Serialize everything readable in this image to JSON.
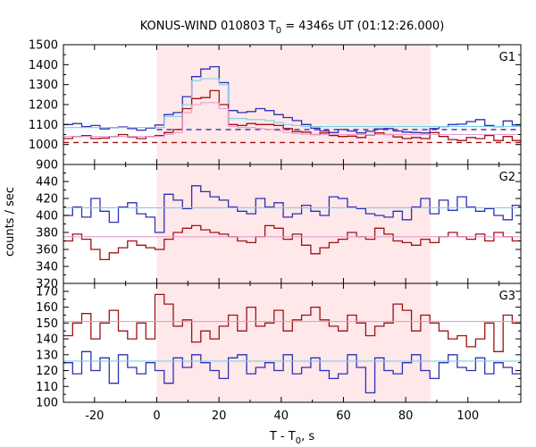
{
  "chart_data": {
    "type": "line",
    "title": "KONUS-WIND 010803 T",
    "title_subscript": "0",
    "title_suffix": " = 4346s UT (01:12:26.000)",
    "xlabel": "T - T",
    "xlabel_subscript": "0",
    "xlabel_suffix": ", s",
    "ylabel": "counts / sec",
    "xlim": [
      -30,
      117
    ],
    "xticks": [
      -20,
      0,
      20,
      40,
      60,
      80,
      100
    ],
    "shaded_interval": [
      0,
      88
    ],
    "colors": {
      "shade": "#ffe8ea",
      "blue": "#2f2fb4",
      "red": "#a01010",
      "light_blue": "#7ecde8",
      "light_pink": "#e89ad0",
      "frame": "#000000"
    },
    "panels": [
      {
        "label": "G1",
        "ylim": [
          900,
          1500
        ],
        "yticks": [
          900,
          1000,
          1100,
          1200,
          1300,
          1400,
          1500
        ],
        "series": [
          {
            "color": "blue",
            "step": 2.944,
            "values": [
              1100,
              1105,
              1090,
              1095,
              1078,
              1085,
              1088,
              1080,
              1072,
              1082,
              1098,
              1150,
              1160,
              1240,
              1340,
              1378,
              1390,
              1310,
              1170,
              1160,
              1165,
              1180,
              1170,
              1150,
              1135,
              1120,
              1100,
              1082,
              1068,
              1060,
              1075,
              1068,
              1058,
              1066,
              1078,
              1080,
              1068,
              1062,
              1060,
              1058,
              1080,
              1090,
              1100,
              1102,
              1115,
              1125,
              1095,
              1090,
              1118,
              1098
            ]
          },
          {
            "color": "light_blue",
            "step": 2.944,
            "values": [
              1085,
              1085,
              1085,
              1085,
              1085,
              1085,
              1085,
              1085,
              1085,
              1085,
              1085,
              1140,
              1140,
              1200,
              1320,
              1330,
              1330,
              1300,
              1130,
              1130,
              1125,
              1125,
              1120,
              1110,
              1100,
              1095,
              1090,
              1090,
              1090,
              1090,
              1090,
              1090,
              1090,
              1090,
              1090,
              1090,
              1090,
              1090,
              1090,
              1090,
              1090,
              1090,
              1090,
              1090,
              1090,
              1090,
              1090,
              1090,
              1090,
              1090
            ]
          },
          {
            "color": "red",
            "step": 2.944,
            "values": [
              1030,
              1040,
              1045,
              1030,
              1032,
              1040,
              1050,
              1038,
              1030,
              1040,
              1045,
              1060,
              1075,
              1180,
              1230,
              1235,
              1270,
              1200,
              1100,
              1095,
              1105,
              1100,
              1100,
              1095,
              1080,
              1065,
              1062,
              1050,
              1058,
              1045,
              1040,
              1042,
              1035,
              1048,
              1058,
              1050,
              1038,
              1030,
              1035,
              1030,
              1060,
              1040,
              1025,
              1020,
              1035,
              1030,
              1045,
              1020,
              1040,
              1020
            ]
          },
          {
            "color": "light_pink",
            "step": 2.944,
            "values": [
              1040,
              1040,
              1040,
              1040,
              1040,
              1040,
              1040,
              1040,
              1040,
              1040,
              1040,
              1050,
              1060,
              1160,
              1200,
              1210,
              1210,
              1180,
              1090,
              1085,
              1085,
              1080,
              1075,
              1070,
              1060,
              1055,
              1052,
              1050,
              1050,
              1050,
              1050,
              1050,
              1050,
              1050,
              1050,
              1050,
              1050,
              1050,
              1050,
              1050,
              1050,
              1050,
              1050,
              1050,
              1050,
              1050,
              1050,
              1050,
              1050,
              1050
            ]
          }
        ],
        "dashed_levels": [
          {
            "color": "blue",
            "value": 1075,
            "from": 0,
            "to": 117
          },
          {
            "color": "red",
            "value": 1010,
            "from": -30,
            "to": 117
          }
        ]
      },
      {
        "label": "G2",
        "ylim": [
          320,
          460
        ],
        "yticks": [
          320,
          340,
          360,
          380,
          400,
          420,
          440
        ],
        "series": [
          {
            "color": "blue",
            "step": 2.944,
            "values": [
              400,
              410,
              398,
              420,
              405,
              392,
              410,
              415,
              402,
              398,
              380,
              425,
              418,
              408,
              435,
              428,
              422,
              418,
              410,
              405,
              402,
              420,
              410,
              415,
              398,
              402,
              412,
              405,
              400,
              422,
              420,
              410,
              408,
              402,
              400,
              398,
              405,
              395,
              410,
              420,
              402,
              418,
              406,
              422,
              410,
              405,
              408,
              400,
              395,
              412
            ]
          },
          {
            "color": "light_blue",
            "step": 2.944,
            "values": [
              409,
              409,
              409,
              409,
              409,
              409,
              409,
              409,
              409,
              409,
              409,
              409,
              409,
              409,
              409,
              409,
              409,
              409,
              409,
              409,
              409,
              409,
              409,
              409,
              409,
              409,
              409,
              409,
              409,
              409,
              409,
              409,
              409,
              409,
              409,
              409,
              409,
              409,
              409,
              409,
              409,
              409,
              409,
              409,
              409,
              409,
              409,
              409,
              409,
              409
            ]
          },
          {
            "color": "red",
            "step": 2.944,
            "values": [
              370,
              378,
              372,
              360,
              348,
              356,
              362,
              370,
              365,
              362,
              360,
              372,
              380,
              385,
              388,
              383,
              380,
              378,
              375,
              370,
              368,
              375,
              388,
              385,
              372,
              378,
              365,
              355,
              362,
              368,
              372,
              380,
              375,
              372,
              385,
              378,
              370,
              368,
              365,
              372,
              368,
              375,
              380,
              375,
              372,
              378,
              370,
              380,
              375,
              370
            ]
          },
          {
            "color": "light_pink",
            "step": 2.944,
            "values": [
              375,
              375,
              375,
              375,
              375,
              375,
              375,
              375,
              375,
              375,
              375,
              375,
              375,
              375,
              375,
              375,
              375,
              375,
              375,
              375,
              375,
              375,
              375,
              375,
              375,
              375,
              375,
              375,
              375,
              375,
              375,
              375,
              375,
              375,
              375,
              375,
              375,
              375,
              375,
              375,
              375,
              375,
              375,
              375,
              375,
              375,
              375,
              375,
              375,
              375
            ]
          }
        ],
        "dashed_levels": []
      },
      {
        "label": "G3",
        "ylim": [
          100,
          175
        ],
        "yticks": [
          100,
          110,
          120,
          130,
          140,
          150,
          160,
          170
        ],
        "series": [
          {
            "color": "blue",
            "step": 2.944,
            "values": [
              125,
              118,
              132,
              120,
              128,
              112,
              130,
              122,
              118,
              125,
              120,
              112,
              128,
              122,
              130,
              125,
              120,
              115,
              128,
              130,
              118,
              122,
              125,
              120,
              130,
              118,
              122,
              128,
              120,
              115,
              118,
              130,
              122,
              106,
              128,
              120,
              118,
              125,
              130,
              120,
              115,
              125,
              130,
              122,
              120,
              128,
              118,
              125,
              122,
              118
            ]
          },
          {
            "color": "light_blue",
            "step": 2.944,
            "values": [
              126,
              126,
              126,
              126,
              126,
              126,
              126,
              126,
              126,
              126,
              126,
              126,
              126,
              126,
              126,
              126,
              126,
              126,
              126,
              126,
              126,
              126,
              126,
              126,
              126,
              126,
              126,
              126,
              126,
              126,
              126,
              126,
              126,
              126,
              126,
              126,
              126,
              126,
              126,
              126,
              126,
              126,
              126,
              126,
              126,
              126,
              126,
              126,
              126,
              126
            ]
          },
          {
            "color": "red",
            "step": 2.944,
            "values": [
              142,
              150,
              156,
              140,
              150,
              158,
              145,
              140,
              150,
              140,
              168,
              162,
              148,
              152,
              138,
              145,
              140,
              148,
              155,
              145,
              160,
              148,
              150,
              158,
              145,
              152,
              155,
              160,
              152,
              148,
              145,
              155,
              150,
              142,
              148,
              150,
              162,
              158,
              145,
              155,
              150,
              145,
              140,
              142,
              135,
              140,
              150,
              132,
              155,
              150
            ]
          },
          {
            "color": "light_pink",
            "step": 2.944,
            "values": [
              151,
              151,
              151,
              151,
              151,
              151,
              151,
              151,
              151,
              151,
              151,
              151,
              151,
              151,
              151,
              151,
              151,
              151,
              151,
              151,
              151,
              151,
              151,
              151,
              151,
              151,
              151,
              151,
              151,
              151,
              151,
              151,
              151,
              151,
              151,
              151,
              151,
              151,
              151,
              151,
              151,
              151,
              151,
              151,
              151,
              151,
              151,
              151,
              151,
              151
            ]
          }
        ],
        "dashed_levels": []
      }
    ]
  }
}
